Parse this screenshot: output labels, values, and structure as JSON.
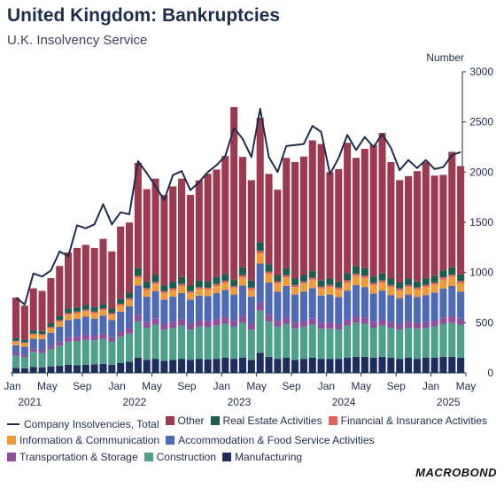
{
  "title": "United Kingdom: Bankruptcies",
  "subtitle": "U.K. Insolvency Service",
  "brand": "MACROBOND",
  "chart_data": {
    "type": "bar",
    "stacked": true,
    "y_unit_label": "Number",
    "ylim": [
      0,
      3000
    ],
    "y_ticks": [
      0,
      500,
      1000,
      1500,
      2000,
      2500,
      3000
    ],
    "x_tick_labels": [
      {
        "month": "Jan",
        "year": "2021",
        "index": 0
      },
      {
        "month": "May",
        "year": "",
        "index": 4
      },
      {
        "month": "Sep",
        "year": "",
        "index": 8
      },
      {
        "month": "Jan",
        "year": "2022",
        "index": 12
      },
      {
        "month": "May",
        "year": "",
        "index": 16
      },
      {
        "month": "Sep",
        "year": "",
        "index": 20
      },
      {
        "month": "Jan",
        "year": "2023",
        "index": 24
      },
      {
        "month": "May",
        "year": "",
        "index": 28
      },
      {
        "month": "Sep",
        "year": "",
        "index": 32
      },
      {
        "month": "Jan",
        "year": "2024",
        "index": 36
      },
      {
        "month": "May",
        "year": "",
        "index": 40
      },
      {
        "month": "Sep",
        "year": "",
        "index": 44
      },
      {
        "month": "Jan",
        "year": "2025",
        "index": 48
      },
      {
        "month": "May",
        "year": "",
        "index": 52
      }
    ],
    "months": [
      "2021-01",
      "2021-02",
      "2021-03",
      "2021-04",
      "2021-05",
      "2021-06",
      "2021-07",
      "2021-08",
      "2021-09",
      "2021-10",
      "2021-11",
      "2021-12",
      "2022-01",
      "2022-02",
      "2022-03",
      "2022-04",
      "2022-05",
      "2022-06",
      "2022-07",
      "2022-08",
      "2022-09",
      "2022-10",
      "2022-11",
      "2022-12",
      "2023-01",
      "2023-02",
      "2023-03",
      "2023-04",
      "2023-05",
      "2023-06",
      "2023-07",
      "2023-08",
      "2023-09",
      "2023-10",
      "2023-11",
      "2023-12",
      "2024-01",
      "2024-02",
      "2024-03",
      "2024-04",
      "2024-05",
      "2024-06",
      "2024-07",
      "2024-08",
      "2024-09",
      "2024-10",
      "2024-11",
      "2024-12",
      "2025-01",
      "2025-02",
      "2025-03",
      "2025-04"
    ],
    "series": [
      {
        "name": "Manufacturing",
        "color": "#1f2d5e",
        "values": [
          50,
          45,
          60,
          55,
          65,
          70,
          80,
          75,
          80,
          85,
          90,
          80,
          100,
          110,
          150,
          130,
          140,
          120,
          130,
          140,
          130,
          140,
          135,
          140,
          150,
          140,
          150,
          130,
          200,
          160,
          140,
          150,
          130,
          140,
          150,
          140,
          140,
          140,
          150,
          160,
          160,
          150,
          160,
          150,
          140,
          150,
          140,
          150,
          150,
          160,
          160,
          150
        ]
      },
      {
        "name": "Construction",
        "color": "#4fa08a",
        "values": [
          120,
          110,
          150,
          140,
          170,
          200,
          230,
          240,
          250,
          240,
          250,
          230,
          260,
          280,
          360,
          320,
          340,
          310,
          320,
          330,
          300,
          320,
          320,
          330,
          340,
          320,
          350,
          300,
          420,
          350,
          320,
          340,
          310,
          320,
          330,
          300,
          300,
          290,
          320,
          340,
          330,
          300,
          310,
          300,
          290,
          300,
          300,
          300,
          310,
          330,
          340,
          330
        ]
      },
      {
        "name": "Transportation & Storage",
        "color": "#8e4f9e",
        "values": [
          25,
          25,
          30,
          30,
          35,
          40,
          45,
          45,
          50,
          45,
          50,
          45,
          50,
          55,
          70,
          60,
          65,
          60,
          60,
          65,
          60,
          60,
          60,
          65,
          65,
          60,
          70,
          60,
          80,
          70,
          60,
          65,
          60,
          60,
          65,
          60,
          60,
          55,
          60,
          65,
          65,
          60,
          60,
          55,
          55,
          60,
          55,
          55,
          60,
          60,
          65,
          60
        ]
      },
      {
        "name": "Accommodation & Food Service Activities",
        "color": "#4f6ab5",
        "values": [
          80,
          80,
          100,
          110,
          130,
          150,
          170,
          180,
          180,
          170,
          180,
          170,
          200,
          220,
          290,
          250,
          270,
          240,
          250,
          260,
          240,
          250,
          250,
          260,
          270,
          260,
          300,
          270,
          390,
          320,
          290,
          310,
          280,
          290,
          300,
          270,
          280,
          270,
          290,
          310,
          300,
          280,
          290,
          270,
          260,
          270,
          260,
          270,
          280,
          290,
          300,
          270
        ]
      },
      {
        "name": "Information & Communication",
        "color": "#f29a38",
        "values": [
          35,
          35,
          40,
          40,
          45,
          50,
          55,
          55,
          55,
          55,
          55,
          55,
          60,
          60,
          75,
          65,
          70,
          65,
          65,
          70,
          65,
          65,
          65,
          70,
          70,
          65,
          80,
          70,
          100,
          85,
          80,
          85,
          75,
          80,
          80,
          70,
          75,
          75,
          80,
          90,
          90,
          85,
          80,
          80,
          75,
          75,
          75,
          80,
          80,
          90,
          90,
          85
        ]
      },
      {
        "name": "Financial & Insurance Activities",
        "color": "#e0605a",
        "values": [
          10,
          10,
          12,
          12,
          14,
          15,
          15,
          15,
          15,
          15,
          15,
          15,
          18,
          18,
          22,
          20,
          20,
          18,
          18,
          20,
          18,
          18,
          18,
          20,
          20,
          18,
          22,
          20,
          25,
          22,
          20,
          22,
          20,
          20,
          22,
          20,
          20,
          20,
          22,
          22,
          22,
          20,
          20,
          20,
          20,
          20,
          20,
          20,
          20,
          22,
          22,
          20
        ]
      },
      {
        "name": "Real Estate Activities",
        "color": "#1f5c50",
        "values": [
          25,
          25,
          30,
          30,
          35,
          40,
          45,
          45,
          45,
          45,
          45,
          45,
          50,
          55,
          75,
          65,
          70,
          60,
          65,
          70,
          60,
          65,
          65,
          70,
          70,
          65,
          80,
          70,
          85,
          75,
          65,
          70,
          65,
          65,
          70,
          60,
          65,
          60,
          70,
          75,
          75,
          65,
          70,
          65,
          60,
          65,
          60,
          65,
          65,
          70,
          75,
          65
        ]
      },
      {
        "name": "Other",
        "color": "#9b3a50",
        "values": [
          405,
          340,
          420,
          400,
          450,
          500,
          560,
          590,
          600,
          590,
          650,
          570,
          720,
          700,
          1050,
          920,
          960,
          900,
          950,
          980,
          900,
          1000,
          1070,
          1070,
          1175,
          1720,
          1100,
          1000,
          1240,
          900,
          850,
          1100,
          1160,
          1180,
          1300,
          1360,
          1060,
          1120,
          1300,
          1080,
          1190,
          1310,
          1400,
          1160,
          1020,
          1020,
          1100,
          1160,
          1000,
          950,
          1150,
          1080
        ]
      }
    ],
    "line": {
      "name": "Company Insolvencies, Total",
      "color": "#1f2d4d",
      "values": [
        750,
        680,
        990,
        960,
        1020,
        1210,
        1160,
        1470,
        1440,
        1480,
        1680,
        1480,
        1600,
        1580,
        2110,
        1990,
        1860,
        1720,
        1970,
        2010,
        1820,
        1900,
        2000,
        2070,
        2160,
        2440,
        2330,
        2150,
        2630,
        2150,
        2000,
        2260,
        2270,
        2280,
        2460,
        2400,
        1980,
        2140,
        2370,
        2220,
        2350,
        2250,
        2380,
        2240,
        2020,
        2120,
        2040,
        2120,
        2030,
        2050,
        2170,
        2200
      ]
    }
  },
  "legend_rows": [
    [
      {
        "label": "Company Insolvencies, Total",
        "kind": "line",
        "color": "#1f2d4d"
      },
      {
        "label": "Other",
        "kind": "box",
        "color": "#9b3a50"
      },
      {
        "label": "Real Estate Activities",
        "kind": "box",
        "color": "#1f5c50"
      },
      {
        "label": "Financial & Insurance Activities",
        "kind": "box",
        "color": "#e0605a"
      }
    ],
    [
      {
        "label": "Information & Communication",
        "kind": "box",
        "color": "#f29a38"
      },
      {
        "label": "Accommodation & Food Service Activities",
        "kind": "box",
        "color": "#4f6ab5"
      }
    ],
    [
      {
        "label": "Transportation & Storage",
        "kind": "box",
        "color": "#8e4f9e"
      },
      {
        "label": "Construction",
        "kind": "box",
        "color": "#4fa08a"
      },
      {
        "label": "Manufacturing",
        "kind": "box",
        "color": "#1f2d5e"
      }
    ]
  ]
}
